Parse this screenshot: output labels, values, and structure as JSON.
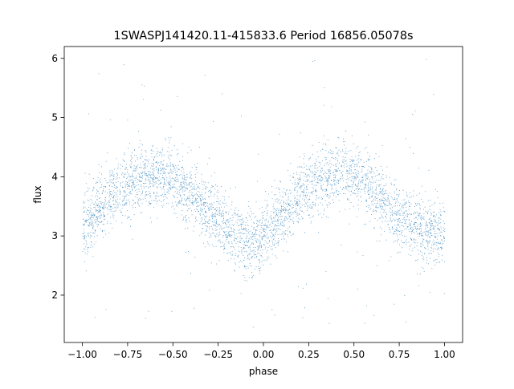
{
  "chart_data": {
    "type": "scatter",
    "title": "1SWASPJ141420.11-415833.6 Period 16856.05078s",
    "xlabel": "phase",
    "ylabel": "flux",
    "xlim": [
      -1.1,
      1.1
    ],
    "ylim": [
      1.2,
      6.2
    ],
    "xticks": [
      -1.0,
      -0.75,
      -0.5,
      -0.25,
      0.0,
      0.25,
      0.5,
      0.75,
      1.0
    ],
    "xtick_labels": [
      "−1.00",
      "−0.75",
      "−0.50",
      "−0.25",
      "0.00",
      "0.25",
      "0.50",
      "0.75",
      "1.00"
    ],
    "yticks": [
      2,
      3,
      4,
      5,
      6
    ],
    "ytick_labels": [
      "2",
      "3",
      "4",
      "5",
      "6"
    ],
    "grid": false,
    "legend": "none",
    "marker_color": "#1f77b4",
    "x_range": [
      -1.0,
      1.0
    ],
    "trend_curve": {
      "x": [
        -1.0,
        -0.9,
        -0.8,
        -0.7,
        -0.6,
        -0.5,
        -0.4,
        -0.3,
        -0.2,
        -0.1,
        0.0,
        0.1,
        0.2,
        0.3,
        0.4,
        0.5,
        0.6,
        0.7,
        0.8,
        0.9,
        1.0
      ],
      "y": [
        3.15,
        3.5,
        3.78,
        3.97,
        4.05,
        3.95,
        3.72,
        3.42,
        3.1,
        2.9,
        2.95,
        3.3,
        3.7,
        3.98,
        4.07,
        3.98,
        3.75,
        3.45,
        3.2,
        3.05,
        3.05
      ]
    },
    "scatter_sigma": 0.27,
    "outlier_range": [
      1.45,
      6.0
    ]
  }
}
